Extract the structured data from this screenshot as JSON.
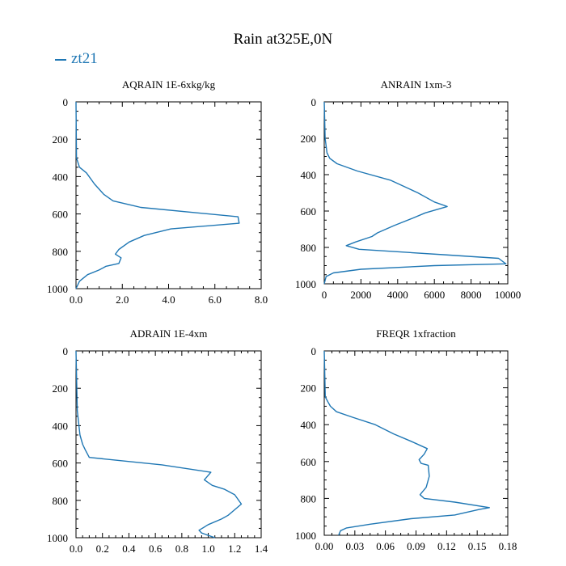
{
  "figure": {
    "title": "Rain at325E,0N",
    "legend": {
      "label": "zt21",
      "color": "#1f77b4"
    }
  },
  "chart_data": [
    {
      "type": "line",
      "title": "AQRAIN  1E-6xkg/kg",
      "xlim": [
        0,
        8
      ],
      "ylim": [
        1000,
        0
      ],
      "xticks": [
        0,
        2,
        4,
        6,
        8
      ],
      "xtick_labels": [
        "0.0",
        "2.0",
        "4.0",
        "6.0",
        "8.0"
      ],
      "yticks": [
        0,
        200,
        400,
        600,
        800,
        1000
      ],
      "ytick_labels": [
        "0",
        "200",
        "400",
        "600",
        "800",
        "1000"
      ],
      "series": [
        {
          "name": "zt21",
          "color": "#1f77b4",
          "x": [
            0.0,
            0.02,
            0.15,
            0.45,
            0.8,
            1.2,
            1.6,
            2.8,
            7.0,
            7.05,
            4.1,
            2.95,
            2.3,
            1.85,
            1.7,
            1.95,
            1.85,
            1.3,
            1.0,
            0.5,
            0.15,
            0.0
          ],
          "y": [
            0,
            300,
            350,
            380,
            440,
            495,
            530,
            565,
            615,
            650,
            680,
            715,
            750,
            790,
            815,
            835,
            865,
            880,
            900,
            925,
            960,
            1000
          ]
        }
      ]
    },
    {
      "type": "line",
      "title": "ANRAIN  1xm-3",
      "xlim": [
        0,
        10000
      ],
      "ylim": [
        1000,
        0
      ],
      "xticks": [
        0,
        2000,
        4000,
        6000,
        8000,
        10000
      ],
      "xtick_labels": [
        "0",
        "2000",
        "4000",
        "6000",
        "8000",
        "10000"
      ],
      "yticks": [
        0,
        200,
        400,
        600,
        800,
        1000
      ],
      "ytick_labels": [
        "0",
        "200",
        "400",
        "600",
        "800",
        "1000"
      ],
      "series": [
        {
          "name": "zt21",
          "color": "#1f77b4",
          "x": [
            0,
            50,
            150,
            300,
            700,
            1800,
            3600,
            5100,
            6000,
            6700,
            5500,
            4800,
            3800,
            2900,
            2600,
            1700,
            1200,
            1900,
            6500,
            9500,
            9900,
            6000,
            2000,
            500,
            100,
            0
          ],
          "y": [
            0,
            200,
            280,
            310,
            340,
            380,
            430,
            500,
            550,
            575,
            610,
            640,
            680,
            720,
            740,
            770,
            790,
            810,
            840,
            860,
            890,
            900,
            920,
            940,
            960,
            1000
          ]
        }
      ]
    },
    {
      "type": "line",
      "title": "ADRAIN  1E-4xm",
      "xlim": [
        0,
        1.4
      ],
      "ylim": [
        1000,
        0
      ],
      "xticks": [
        0,
        0.2,
        0.4,
        0.6,
        0.8,
        1.0,
        1.2,
        1.4
      ],
      "xtick_labels": [
        "0.0",
        "0.2",
        "0.4",
        "0.6",
        "0.8",
        "1.0",
        "1.2",
        "1.4"
      ],
      "yticks": [
        0,
        200,
        400,
        600,
        800,
        1000
      ],
      "ytick_labels": [
        "0",
        "200",
        "400",
        "600",
        "800",
        "1000"
      ],
      "series": [
        {
          "name": "zt21",
          "color": "#1f77b4",
          "x": [
            0.0,
            0.01,
            0.03,
            0.05,
            0.07,
            0.1,
            0.65,
            1.02,
            0.97,
            1.03,
            1.12,
            1.2,
            1.25,
            1.2,
            1.15,
            1.1,
            1.0,
            0.93,
            0.95,
            1.05
          ],
          "y": [
            0,
            320,
            450,
            500,
            530,
            570,
            610,
            650,
            690,
            720,
            740,
            770,
            820,
            850,
            880,
            900,
            930,
            960,
            975,
            1000
          ]
        }
      ]
    },
    {
      "type": "line",
      "title": "FREQR  1xfraction",
      "xlim": [
        0,
        0.18
      ],
      "ylim": [
        1000,
        0
      ],
      "xticks": [
        0,
        0.03,
        0.06,
        0.09,
        0.12,
        0.15,
        0.18
      ],
      "xtick_labels": [
        "0.00",
        "0.03",
        "0.06",
        "0.09",
        "0.12",
        "0.15",
        "0.18"
      ],
      "yticks": [
        0,
        200,
        400,
        600,
        800,
        1000
      ],
      "ytick_labels": [
        "0",
        "200",
        "400",
        "600",
        "800",
        "1000"
      ],
      "series": [
        {
          "name": "zt21",
          "color": "#1f77b4",
          "x": [
            0.0,
            0.001,
            0.004,
            0.006,
            0.012,
            0.028,
            0.05,
            0.068,
            0.085,
            0.101,
            0.098,
            0.093,
            0.095,
            0.102,
            0.103,
            0.1,
            0.094,
            0.098,
            0.128,
            0.162,
            0.152,
            0.128,
            0.085,
            0.045,
            0.022,
            0.016,
            0.014
          ],
          "y": [
            0,
            250,
            280,
            300,
            330,
            360,
            400,
            450,
            490,
            530,
            560,
            590,
            610,
            620,
            680,
            740,
            780,
            800,
            820,
            850,
            860,
            890,
            910,
            940,
            960,
            975,
            1000
          ]
        }
      ]
    }
  ]
}
